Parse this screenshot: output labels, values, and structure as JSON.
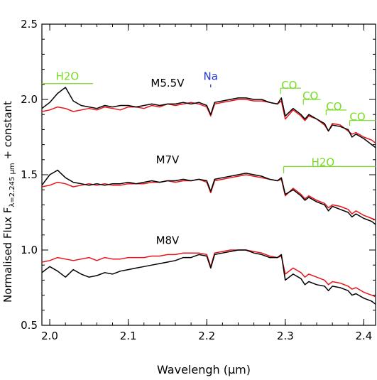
{
  "chart_data": {
    "type": "line",
    "xlabel": "Wavelengh (μm)",
    "ylabel_main": "Normalised Flux F",
    "ylabel_sub": "λ=2.245 μm",
    "ylabel_tail": " + constant",
    "xlim": [
      1.99,
      2.415
    ],
    "ylim": [
      0.5,
      2.5
    ],
    "xticks": [
      2.0,
      2.1,
      2.2,
      2.3,
      2.4
    ],
    "xtick_labels": [
      "2.0",
      "2.1",
      "2.2",
      "2.3",
      "2.4"
    ],
    "yticks": [
      0.5,
      1.0,
      1.5,
      2.0,
      2.5
    ],
    "ytick_labels": [
      "0.5",
      "1.0",
      "1.5",
      "2.0",
      "2.5"
    ],
    "grid": false,
    "colors": {
      "black_series": "#000000",
      "red_series": "#e8141b",
      "feature_green": "#77dd22",
      "feature_blue": "#2233cc"
    },
    "x": [
      1.99,
      2.0,
      2.01,
      2.02,
      2.03,
      2.04,
      2.05,
      2.06,
      2.07,
      2.08,
      2.09,
      2.1,
      2.11,
      2.12,
      2.13,
      2.14,
      2.15,
      2.16,
      2.17,
      2.18,
      2.19,
      2.2,
      2.205,
      2.21,
      2.22,
      2.23,
      2.24,
      2.25,
      2.26,
      2.27,
      2.28,
      2.29,
      2.295,
      2.3,
      2.31,
      2.32,
      2.325,
      2.33,
      2.34,
      2.35,
      2.355,
      2.36,
      2.37,
      2.38,
      2.385,
      2.39,
      2.4,
      2.41,
      2.415
    ],
    "spectra": [
      {
        "label": "M5.5V",
        "black": [
          1.94,
          1.98,
          2.04,
          2.08,
          1.99,
          1.96,
          1.95,
          1.94,
          1.96,
          1.95,
          1.96,
          1.96,
          1.95,
          1.96,
          1.97,
          1.96,
          1.97,
          1.97,
          1.98,
          1.97,
          1.98,
          1.96,
          1.9,
          1.98,
          1.99,
          2.0,
          2.01,
          2.01,
          2.0,
          2.0,
          1.98,
          1.97,
          2.01,
          1.89,
          1.94,
          1.9,
          1.87,
          1.9,
          1.87,
          1.84,
          1.79,
          1.83,
          1.82,
          1.8,
          1.75,
          1.77,
          1.74,
          1.7,
          1.68
        ],
        "red": [
          1.92,
          1.93,
          1.95,
          1.94,
          1.92,
          1.93,
          1.94,
          1.93,
          1.95,
          1.94,
          1.93,
          1.95,
          1.95,
          1.94,
          1.96,
          1.95,
          1.97,
          1.96,
          1.97,
          1.98,
          1.97,
          1.95,
          1.89,
          1.97,
          1.98,
          1.99,
          2.0,
          2.0,
          1.99,
          1.99,
          1.98,
          1.97,
          1.99,
          1.87,
          1.93,
          1.89,
          1.86,
          1.89,
          1.87,
          1.83,
          1.79,
          1.84,
          1.83,
          1.79,
          1.77,
          1.78,
          1.75,
          1.73,
          1.71
        ]
      },
      {
        "label": "M7V",
        "black": [
          1.43,
          1.5,
          1.53,
          1.48,
          1.45,
          1.44,
          1.43,
          1.44,
          1.43,
          1.44,
          1.44,
          1.45,
          1.44,
          1.45,
          1.46,
          1.45,
          1.46,
          1.46,
          1.47,
          1.46,
          1.47,
          1.46,
          1.39,
          1.47,
          1.48,
          1.49,
          1.5,
          1.51,
          1.5,
          1.49,
          1.47,
          1.46,
          1.48,
          1.37,
          1.4,
          1.36,
          1.33,
          1.35,
          1.32,
          1.3,
          1.26,
          1.29,
          1.27,
          1.25,
          1.22,
          1.24,
          1.21,
          1.19,
          1.17
        ],
        "red": [
          1.42,
          1.43,
          1.45,
          1.44,
          1.42,
          1.43,
          1.44,
          1.43,
          1.44,
          1.43,
          1.43,
          1.44,
          1.44,
          1.44,
          1.45,
          1.45,
          1.46,
          1.45,
          1.46,
          1.46,
          1.47,
          1.45,
          1.38,
          1.46,
          1.47,
          1.48,
          1.49,
          1.5,
          1.49,
          1.48,
          1.47,
          1.46,
          1.47,
          1.36,
          1.41,
          1.37,
          1.34,
          1.36,
          1.33,
          1.31,
          1.28,
          1.3,
          1.29,
          1.27,
          1.24,
          1.26,
          1.23,
          1.21,
          1.2
        ]
      },
      {
        "label": "M8V",
        "black": [
          0.85,
          0.89,
          0.86,
          0.82,
          0.87,
          0.84,
          0.82,
          0.83,
          0.85,
          0.84,
          0.86,
          0.87,
          0.88,
          0.89,
          0.9,
          0.91,
          0.92,
          0.93,
          0.95,
          0.95,
          0.97,
          0.96,
          0.88,
          0.97,
          0.98,
          0.99,
          1.0,
          1.0,
          0.98,
          0.97,
          0.95,
          0.95,
          0.97,
          0.8,
          0.84,
          0.81,
          0.77,
          0.79,
          0.77,
          0.76,
          0.73,
          0.76,
          0.75,
          0.73,
          0.7,
          0.71,
          0.68,
          0.66,
          0.64
        ],
        "red": [
          0.92,
          0.93,
          0.95,
          0.94,
          0.93,
          0.94,
          0.95,
          0.93,
          0.95,
          0.94,
          0.94,
          0.95,
          0.95,
          0.95,
          0.96,
          0.96,
          0.97,
          0.97,
          0.98,
          0.98,
          0.98,
          0.97,
          0.89,
          0.98,
          0.99,
          1.0,
          1.0,
          1.0,
          0.99,
          0.98,
          0.96,
          0.95,
          0.96,
          0.84,
          0.88,
          0.85,
          0.82,
          0.84,
          0.82,
          0.8,
          0.77,
          0.79,
          0.78,
          0.76,
          0.74,
          0.75,
          0.72,
          0.7,
          0.69
        ]
      }
    ],
    "annotations": [
      {
        "text": "H2O",
        "color": "green",
        "anchor_x": 2.0225,
        "anchor_y": 2.13,
        "bar": [
          1.99,
          2.055,
          2.105
        ],
        "tick": null
      },
      {
        "text": "Na",
        "color": "blue",
        "anchor_x": 2.205,
        "anchor_y": 2.13,
        "bar": null,
        "tick": [
          2.205,
          2.1,
          2.08
        ]
      },
      {
        "text": "CO",
        "color": "green",
        "anchor_x": 2.305,
        "anchor_y": 2.07,
        "bar": [
          2.294,
          2.32,
          2.075
        ],
        "tick": [
          2.294,
          2.075,
          2.035
        ]
      },
      {
        "text": "CO",
        "color": "green",
        "anchor_x": 2.332,
        "anchor_y": 2.0,
        "bar": [
          2.323,
          2.345,
          2.0
        ],
        "tick": [
          2.323,
          2.0,
          1.965
        ]
      },
      {
        "text": "CO",
        "color": "green",
        "anchor_x": 2.362,
        "anchor_y": 1.93,
        "bar": [
          2.352,
          2.378,
          1.93
        ],
        "tick": [
          2.352,
          1.93,
          1.895
        ]
      },
      {
        "text": "CO",
        "color": "green",
        "anchor_x": 2.392,
        "anchor_y": 1.86,
        "bar": [
          2.382,
          2.415,
          1.86
        ],
        "tick": [
          2.382,
          1.86,
          1.825
        ]
      },
      {
        "text": "H2O",
        "color": "green",
        "anchor_x": 2.348,
        "anchor_y": 1.56,
        "bar": [
          2.298,
          2.415,
          1.555
        ],
        "tick": [
          2.298,
          1.555,
          1.51
        ]
      }
    ]
  }
}
